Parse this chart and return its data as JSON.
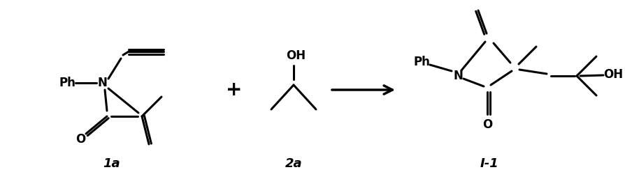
{
  "background": "#ffffff",
  "font_color": "#000000",
  "label_1a": "1a",
  "label_2a": "2a",
  "label_product": "I-1"
}
